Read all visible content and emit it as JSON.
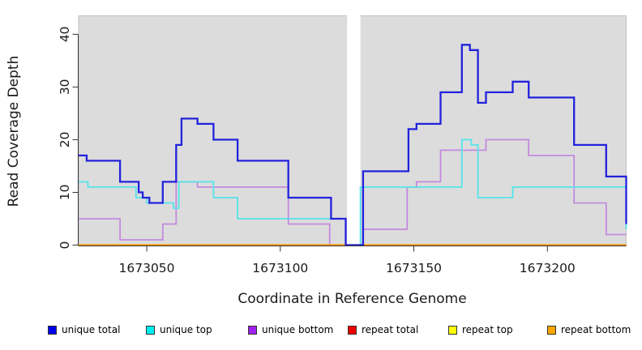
{
  "chart_data": {
    "type": "line",
    "subtype": "step",
    "title": "",
    "xlabel": "Coordinate in Reference Genome",
    "ylabel": "Read Coverage Depth",
    "xlim": [
      1673024.5,
      1673229.5
    ],
    "ylim": [
      0,
      43.5
    ],
    "x_ticks": [
      1673050,
      1673100,
      1673150,
      1673200
    ],
    "y_ticks": [
      0,
      10,
      20,
      30,
      40
    ],
    "grid": false,
    "panel_background": "#dcdcdc",
    "panel_border_color": "#c2c2c2",
    "axis_color": "#333333",
    "gap_band": {
      "x_start": 1673125,
      "x_end": 1673130,
      "color": "#ffffff"
    },
    "series": [
      {
        "name": "unique total",
        "line_color": "#2222dd",
        "line_width": 2.3,
        "points": [
          [
            1673024.5,
            17
          ],
          [
            1673027.5,
            16
          ],
          [
            1673040,
            12
          ],
          [
            1673047,
            10
          ],
          [
            1673048.5,
            9
          ],
          [
            1673051,
            8
          ],
          [
            1673056,
            12
          ],
          [
            1673061,
            19
          ],
          [
            1673063,
            24
          ],
          [
            1673069,
            23
          ],
          [
            1673075,
            20
          ],
          [
            1673084,
            16
          ],
          [
            1673103,
            9
          ],
          [
            1673119,
            5
          ],
          [
            1673124.5,
            0
          ],
          [
            1673131,
            14
          ],
          [
            1673148,
            22
          ],
          [
            1673151,
            23
          ],
          [
            1673160,
            29
          ],
          [
            1673168,
            38
          ],
          [
            1673171,
            37
          ],
          [
            1673174,
            27
          ],
          [
            1673177,
            29
          ],
          [
            1673187,
            31
          ],
          [
            1673193,
            28
          ],
          [
            1673210,
            19
          ],
          [
            1673222,
            13
          ],
          [
            1673229.5,
            4
          ]
        ]
      },
      {
        "name": "unique top",
        "line_color": "#53e4ea",
        "line_width": 1.8,
        "points": [
          [
            1673024.5,
            12
          ],
          [
            1673028,
            11
          ],
          [
            1673046,
            9
          ],
          [
            1673050,
            8
          ],
          [
            1673060,
            7
          ],
          [
            1673062,
            12
          ],
          [
            1673075,
            9
          ],
          [
            1673084,
            5
          ],
          [
            1673124.5,
            0
          ],
          [
            1673130,
            11
          ],
          [
            1673168,
            20
          ],
          [
            1673171.5,
            19
          ],
          [
            1673174,
            9
          ],
          [
            1673187,
            11
          ],
          [
            1673229.5,
            3
          ]
        ]
      },
      {
        "name": "unique bottom",
        "line_color": "#c38ade",
        "line_width": 1.8,
        "points": [
          [
            1673024.5,
            5
          ],
          [
            1673040,
            1
          ],
          [
            1673056,
            4
          ],
          [
            1673061,
            12
          ],
          [
            1673069,
            11
          ],
          [
            1673103,
            4
          ],
          [
            1673118.5,
            0
          ],
          [
            1673131,
            3
          ],
          [
            1673147.5,
            11
          ],
          [
            1673151,
            12
          ],
          [
            1673160,
            18
          ],
          [
            1673177,
            20
          ],
          [
            1673193,
            17
          ],
          [
            1673210,
            8
          ],
          [
            1673222,
            2
          ]
        ]
      },
      {
        "name": "repeat total",
        "line_color": "#dd2222",
        "line_width": 1.8,
        "points": [
          [
            1673024.5,
            0
          ]
        ]
      },
      {
        "name": "repeat top",
        "line_color": "#ffff00",
        "line_width": 1.8,
        "points": [
          [
            1673024.5,
            0
          ]
        ]
      },
      {
        "name": "repeat bottom",
        "line_color": "#ff9500",
        "line_width": 2.2,
        "points": [
          [
            1673024.5,
            0
          ]
        ]
      }
    ],
    "draw_order": [
      "unique bottom",
      "repeat total",
      "repeat top",
      "repeat bottom",
      "unique top",
      "unique total"
    ]
  },
  "legend": {
    "items": [
      {
        "label": "unique total",
        "color": "#0000ee"
      },
      {
        "label": "unique top",
        "color": "#00eeee"
      },
      {
        "label": "unique bottom",
        "color": "#a020f0"
      },
      {
        "label": "repeat total",
        "color": "#ee0000"
      },
      {
        "label": "repeat top",
        "color": "#ffff00"
      },
      {
        "label": "repeat bottom",
        "color": "#ffa500"
      }
    ]
  }
}
